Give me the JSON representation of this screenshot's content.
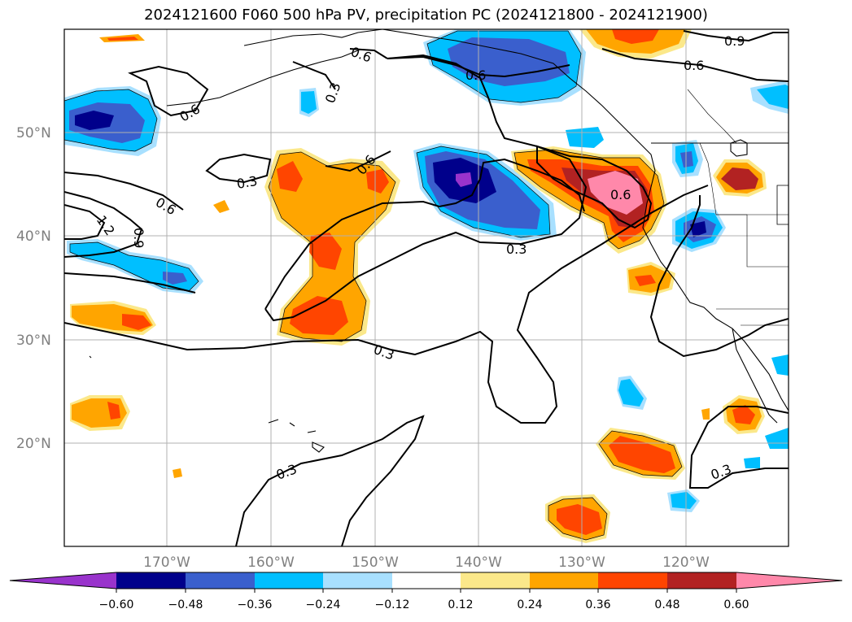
{
  "title": "2024121600 F060 500 hPa PV, precipitation PC (2024121800 - 2024121900)",
  "lat_labels": [
    "50°N",
    "40°N",
    "30°N",
    "20°N"
  ],
  "lon_labels": [
    "170°W",
    "160°W",
    "150°W",
    "140°W",
    "130°W",
    "120°W"
  ],
  "contour_labels": [
    "0.6",
    "0.9",
    "0.6",
    "0.3",
    "0.6",
    "0.6",
    "0.3",
    "0.6",
    "0.6",
    "1.2",
    "0.9",
    "0.6",
    "0.3",
    "0.3",
    "0.3",
    "0.3"
  ],
  "colorbar": {
    "ticks": [
      "−0.60",
      "−0.48",
      "−0.36",
      "−0.24",
      "−0.12",
      "0.12",
      "0.24",
      "0.36",
      "0.48",
      "0.60"
    ],
    "colors": [
      "#9933cc",
      "#00008b",
      "#3a5fcd",
      "#00bfff",
      "#a8e0ff",
      "#ffffff",
      "#fbe88a",
      "#ffa500",
      "#ff4500",
      "#b22222",
      "#ff88aa"
    ]
  },
  "map_extent": {
    "lon_min": -180,
    "lon_max": -110,
    "lat_min": 10,
    "lat_max": 60
  }
}
